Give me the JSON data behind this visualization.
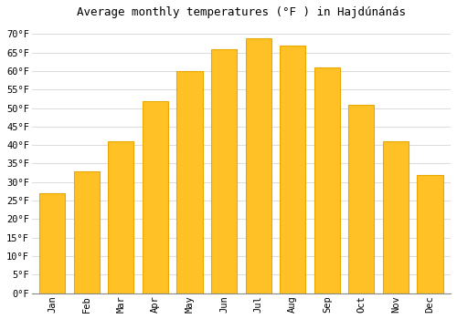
{
  "title": "Average monthly temperatures (°F ) in Hajdúnánás",
  "months": [
    "Jan",
    "Feb",
    "Mar",
    "Apr",
    "May",
    "Jun",
    "Jul",
    "Aug",
    "Sep",
    "Oct",
    "Nov",
    "Dec"
  ],
  "values": [
    27,
    33,
    41,
    52,
    60,
    66,
    69,
    67,
    61,
    51,
    41,
    32
  ],
  "bar_color": "#FFC125",
  "bar_edge_color": "#E8A800",
  "background_color": "#FFFFFF",
  "grid_color": "#DDDDDD",
  "yticks": [
    0,
    5,
    10,
    15,
    20,
    25,
    30,
    35,
    40,
    45,
    50,
    55,
    60,
    65,
    70
  ],
  "ylim": [
    0,
    73
  ],
  "title_fontsize": 9,
  "tick_fontsize": 7.5,
  "bar_width": 0.75
}
